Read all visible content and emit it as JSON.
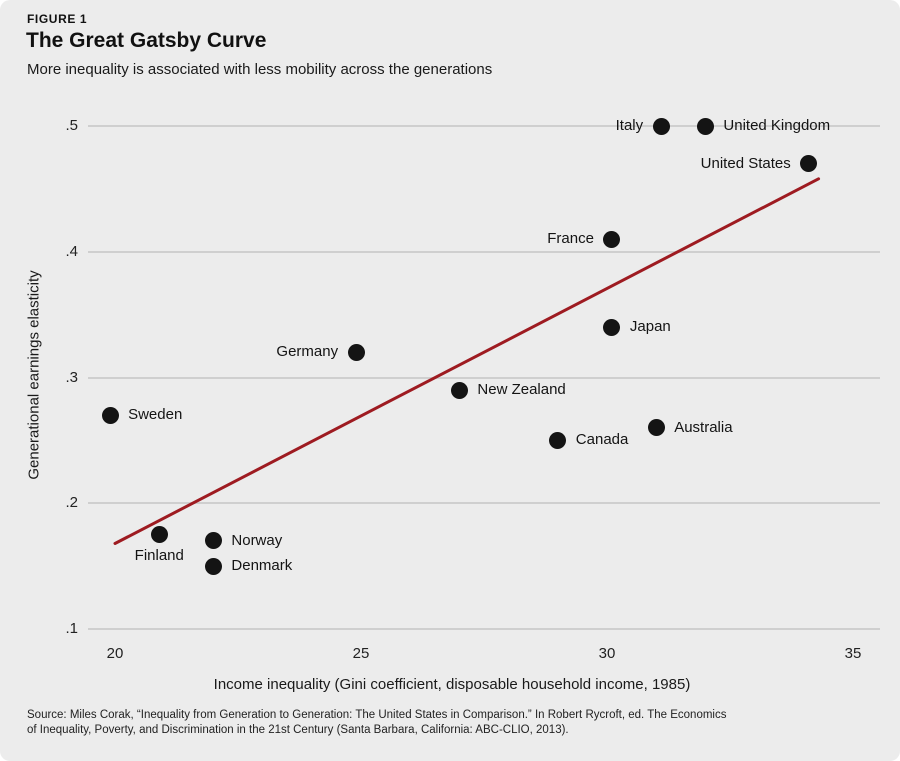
{
  "chart_data": {
    "type": "scatter",
    "figure_label": "FIGURE 1",
    "title": "The Great Gatsby Curve",
    "subtitle": "More inequality is associated with less mobility across the generations",
    "xlabel": "Income inequality (Gini coefficient, disposable household income, 1985)",
    "ylabel": "Generational earnings elasticity",
    "xlim": [
      20,
      35
    ],
    "ylim": [
      0.1,
      0.5
    ],
    "grid": true,
    "legend": "none",
    "point_color": "#141414",
    "x_ticks": [
      {
        "value": 20,
        "label": "20"
      },
      {
        "value": 25,
        "label": "25"
      },
      {
        "value": 30,
        "label": "30"
      },
      {
        "value": 35,
        "label": "35"
      }
    ],
    "y_ticks": [
      {
        "value": 0.5,
        "label": ".5"
      },
      {
        "value": 0.4,
        "label": ".4"
      },
      {
        "value": 0.3,
        "label": ".3"
      },
      {
        "value": 0.2,
        "label": ".2"
      },
      {
        "value": 0.1,
        "label": ".1"
      }
    ],
    "points": [
      {
        "country": "Sweden",
        "gini": 19.9,
        "elasticity": 0.27,
        "label_side": "right"
      },
      {
        "country": "Finland",
        "gini": 20.9,
        "elasticity": 0.175,
        "label_side": "below"
      },
      {
        "country": "Norway",
        "gini": 22.0,
        "elasticity": 0.17,
        "label_side": "right"
      },
      {
        "country": "Denmark",
        "gini": 22.0,
        "elasticity": 0.15,
        "label_side": "right"
      },
      {
        "country": "Germany",
        "gini": 24.9,
        "elasticity": 0.32,
        "label_side": "left"
      },
      {
        "country": "New Zealand",
        "gini": 27.0,
        "elasticity": 0.29,
        "label_side": "right"
      },
      {
        "country": "Canada",
        "gini": 29.0,
        "elasticity": 0.25,
        "label_side": "right"
      },
      {
        "country": "France",
        "gini": 30.1,
        "elasticity": 0.41,
        "label_side": "left"
      },
      {
        "country": "Japan",
        "gini": 30.1,
        "elasticity": 0.34,
        "label_side": "right"
      },
      {
        "country": "Australia",
        "gini": 31.0,
        "elasticity": 0.26,
        "label_side": "right"
      },
      {
        "country": "Italy",
        "gini": 31.1,
        "elasticity": 0.5,
        "label_side": "left"
      },
      {
        "country": "United Kingdom",
        "gini": 32.0,
        "elasticity": 0.5,
        "label_side": "right"
      },
      {
        "country": "United States",
        "gini": 34.1,
        "elasticity": 0.47,
        "label_side": "left"
      }
    ],
    "trend_line": {
      "x_start": 20.0,
      "y_start": 0.168,
      "x_end": 34.3,
      "y_end": 0.458,
      "color": "#9e1b21"
    }
  },
  "source": {
    "lines": [
      "Source: Miles Corak, “Inequality from Generation to Generation: The United States in Comparison.” In Robert Rycroft, ed. The Economics",
      "of Inequality, Poverty, and Discrimination in the 21st Century (Santa Barbara, California: ABC-CLIO, 2013)."
    ]
  },
  "colors": {
    "background": "#ececec",
    "gridline": "#cfcfcf",
    "text": "#1a1a1a",
    "accent_red": "#9e1b21"
  }
}
